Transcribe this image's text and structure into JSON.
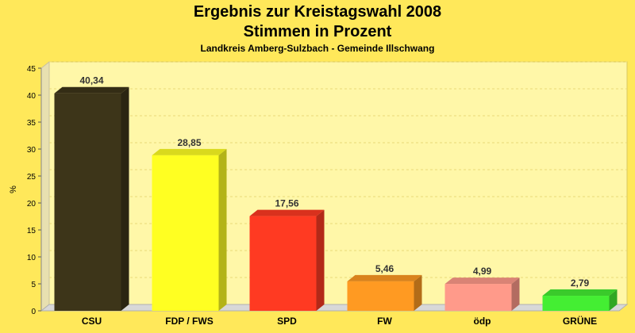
{
  "colors": {
    "background": "#ffe85a",
    "plot_area": "#fff7a8",
    "grid": "#e8d878"
  },
  "chart_data": {
    "type": "bar",
    "title": "Ergebnis zur Kreistagswahl 2008",
    "subtitle": "Stimmen in Prozent",
    "caption": "Landkreis Amberg-Sulzbach - Gemeinde Illschwang",
    "xlabel": "",
    "ylabel": "%",
    "ylim": [
      0,
      45
    ],
    "yticks": [
      0,
      5,
      10,
      15,
      20,
      25,
      30,
      35,
      40,
      45
    ],
    "grid": true,
    "categories": [
      "CSU",
      "FDP / FWS",
      "SPD",
      "FW",
      "ödp",
      "GRÜNE"
    ],
    "values": [
      40.34,
      28.85,
      17.56,
      5.46,
      4.99,
      2.79
    ],
    "value_labels": [
      "40,34",
      "28,85",
      "17,56",
      "5,46",
      "4,99",
      "2,79"
    ],
    "bar_colors": [
      "#3d3519",
      "#ffff22",
      "#ff3a22",
      "#ff9a22",
      "#ff9a8a",
      "#44ee33"
    ]
  }
}
